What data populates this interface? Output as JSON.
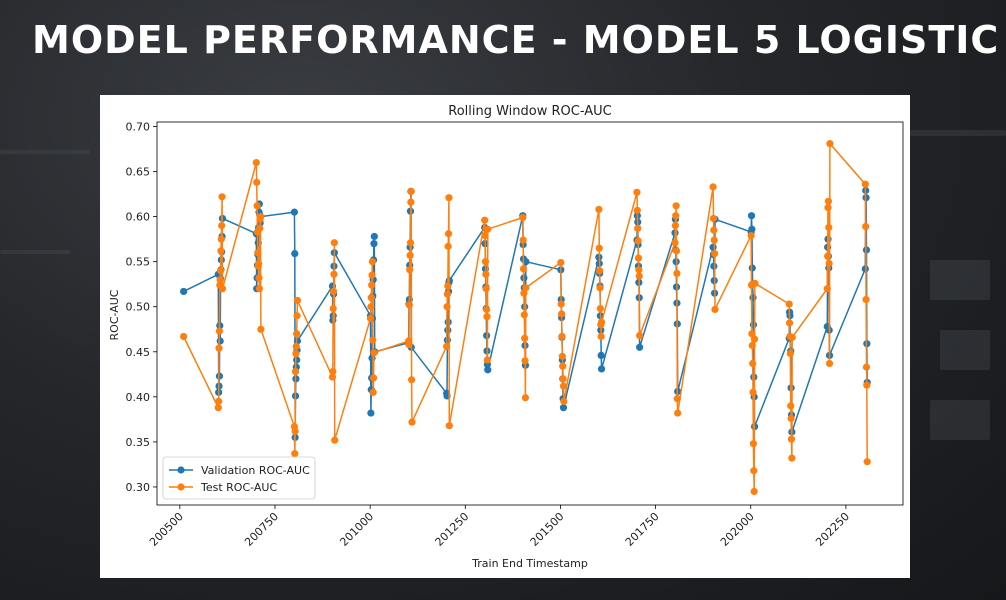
{
  "slide": {
    "title": "MODEL PERFORMANCE - MODEL 5 LOGISTIC"
  },
  "chart_data": {
    "type": "line",
    "title": "Rolling Window ROC-AUC",
    "xlabel": "Train End Timestamp",
    "ylabel": "ROC-AUC",
    "xlim": [
      200440,
      202400
    ],
    "ylim": [
      0.28,
      0.705
    ],
    "xticks": [
      200500,
      200750,
      201000,
      201250,
      201500,
      201750,
      202000,
      202250
    ],
    "yticks": [
      0.3,
      0.35,
      0.4,
      0.45,
      0.5,
      0.55,
      0.6,
      0.65,
      0.7
    ],
    "grid": false,
    "legend_position": "lower-left",
    "series": [
      {
        "name": "Validation ROC-AUC",
        "color": "#1f77b4",
        "x": [
          200510,
          200601,
          200602,
          200603,
          200604,
          200605,
          200606,
          200607,
          200608,
          200609,
          200610,
          200611,
          200612,
          200701,
          200702,
          200703,
          200704,
          200705,
          200706,
          200707,
          200708,
          200709,
          200710,
          200711,
          200712,
          200801,
          200802,
          200803,
          200804,
          200805,
          200806,
          200807,
          200808,
          200809,
          200901,
          200902,
          200903,
          200904,
          200905,
          200906,
          201001,
          201002,
          201003,
          201004,
          201005,
          201006,
          201007,
          201008,
          201009,
          201010,
          201011,
          201012,
          201101,
          201102,
          201103,
          201104,
          201105,
          201106,
          201107,
          201108,
          201201,
          201202,
          201203,
          201204,
          201205,
          201206,
          201207,
          201208,
          201301,
          201302,
          201303,
          201304,
          201305,
          201306,
          201307,
          201308,
          201309,
          201401,
          201402,
          201403,
          201404,
          201405,
          201406,
          201407,
          201408,
          201409,
          201501,
          201502,
          201503,
          201504,
          201505,
          201506,
          201507,
          201508,
          201601,
          201602,
          201603,
          201604,
          201605,
          201606,
          201607,
          201608,
          201701,
          201702,
          201703,
          201704,
          201705,
          201706,
          201707,
          201708,
          201801,
          201802,
          201803,
          201804,
          201805,
          201806,
          201807,
          201808,
          201901,
          201902,
          201903,
          201904,
          201905,
          201906,
          202001,
          202002,
          202003,
          202004,
          202005,
          202006,
          202007,
          202008,
          202009,
          202010,
          202101,
          202102,
          202103,
          202104,
          202105,
          202106,
          202107,
          202108,
          202201,
          202202,
          202203,
          202204,
          202205,
          202206,
          202207,
          202301,
          202302,
          202303,
          202304,
          202305,
          202306
        ],
        "y": [
          0.517,
          0.536,
          0.405,
          0.412,
          0.423,
          0.479,
          0.462,
          0.531,
          0.541,
          0.552,
          0.561,
          0.578,
          0.598,
          0.581,
          0.52,
          0.532,
          0.546,
          0.558,
          0.571,
          0.588,
          0.605,
          0.614,
          0.602,
          0.593,
          0.6,
          0.605,
          0.559,
          0.355,
          0.401,
          0.42,
          0.433,
          0.441,
          0.452,
          0.462,
          0.523,
          0.485,
          0.49,
          0.514,
          0.545,
          0.56,
          0.49,
          0.382,
          0.408,
          0.421,
          0.443,
          0.487,
          0.512,
          0.53,
          0.552,
          0.57,
          0.578,
          0.45,
          0.46,
          0.503,
          0.508,
          0.546,
          0.566,
          0.606,
          0.628,
          0.455,
          0.404,
          0.401,
          0.463,
          0.474,
          0.483,
          0.517,
          0.527,
          0.529,
          0.588,
          0.57,
          0.542,
          0.522,
          0.498,
          0.468,
          0.451,
          0.436,
          0.43,
          0.601,
          0.569,
          0.553,
          0.532,
          0.521,
          0.5,
          0.457,
          0.435,
          0.55,
          0.541,
          0.508,
          0.488,
          0.466,
          0.441,
          0.42,
          0.398,
          0.388,
          0.555,
          0.548,
          0.537,
          0.523,
          0.49,
          0.474,
          0.446,
          0.431,
          0.574,
          0.601,
          0.594,
          0.569,
          0.545,
          0.527,
          0.51,
          0.455,
          0.582,
          0.597,
          0.563,
          0.55,
          0.522,
          0.504,
          0.481,
          0.406,
          0.566,
          0.558,
          0.545,
          0.529,
          0.515,
          0.597,
          0.583,
          0.601,
          0.586,
          0.543,
          0.525,
          0.51,
          0.48,
          0.422,
          0.4,
          0.367,
          0.465,
          0.494,
          0.49,
          0.465,
          0.451,
          0.41,
          0.38,
          0.361,
          0.478,
          0.566,
          0.575,
          0.556,
          0.543,
          0.474,
          0.446,
          0.542,
          0.629,
          0.621,
          0.563,
          0.459,
          0.416
        ]
      },
      {
        "name": "Test ROC-AUC",
        "color": "#ff7f0e",
        "x": [
          200510,
          200601,
          200602,
          200603,
          200604,
          200605,
          200606,
          200607,
          200608,
          200609,
          200610,
          200611,
          200612,
          200701,
          200702,
          200703,
          200704,
          200705,
          200706,
          200707,
          200708,
          200709,
          200710,
          200711,
          200712,
          200713,
          200801,
          200802,
          200803,
          200804,
          200805,
          200806,
          200807,
          200808,
          200809,
          200901,
          200902,
          200903,
          200904,
          200905,
          200906,
          200907,
          201001,
          201002,
          201003,
          201004,
          201005,
          201006,
          201007,
          201008,
          201009,
          201010,
          201101,
          201102,
          201103,
          201104,
          201105,
          201106,
          201107,
          201108,
          201109,
          201110,
          201201,
          201202,
          201203,
          201204,
          201205,
          201206,
          201207,
          201208,
          201301,
          201302,
          201303,
          201304,
          201305,
          201306,
          201307,
          201308,
          201309,
          201401,
          201402,
          201403,
          201404,
          201405,
          201406,
          201407,
          201408,
          201409,
          201501,
          201502,
          201503,
          201504,
          201505,
          201506,
          201507,
          201508,
          201509,
          201601,
          201602,
          201603,
          201604,
          201605,
          201606,
          201607,
          201608,
          201701,
          201702,
          201703,
          201704,
          201705,
          201706,
          201707,
          201708,
          201801,
          201802,
          201803,
          201804,
          201805,
          201806,
          201807,
          201808,
          201901,
          201902,
          201903,
          201904,
          201905,
          201906,
          202001,
          202002,
          202003,
          202004,
          202005,
          202006,
          202007,
          202008,
          202009,
          202010,
          202011,
          202101,
          202102,
          202103,
          202104,
          202105,
          202106,
          202107,
          202108,
          202109,
          202201,
          202202,
          202203,
          202204,
          202205,
          202206,
          202207,
          202208,
          202301,
          202302,
          202303,
          202304,
          202305,
          202306
        ],
        "y": [
          0.467,
          0.388,
          0.395,
          0.454,
          0.473,
          0.524,
          0.53,
          0.54,
          0.562,
          0.575,
          0.59,
          0.622,
          0.52,
          0.66,
          0.638,
          0.612,
          0.583,
          0.56,
          0.545,
          0.548,
          0.532,
          0.52,
          0.587,
          0.597,
          0.6,
          0.475,
          0.367,
          0.337,
          0.362,
          0.428,
          0.448,
          0.456,
          0.47,
          0.49,
          0.507,
          0.422,
          0.428,
          0.498,
          0.517,
          0.536,
          0.571,
          0.352,
          0.487,
          0.5,
          0.51,
          0.524,
          0.535,
          0.55,
          0.463,
          0.405,
          0.421,
          0.449,
          0.462,
          0.458,
          0.502,
          0.541,
          0.557,
          0.571,
          0.616,
          0.628,
          0.419,
          0.372,
          0.456,
          0.5,
          0.514,
          0.523,
          0.567,
          0.581,
          0.621,
          0.368,
          0.596,
          0.579,
          0.55,
          0.536,
          0.52,
          0.497,
          0.489,
          0.441,
          0.586,
          0.599,
          0.574,
          0.542,
          0.515,
          0.491,
          0.465,
          0.44,
          0.399,
          0.521,
          0.549,
          0.503,
          0.492,
          0.467,
          0.445,
          0.434,
          0.42,
          0.412,
          0.395,
          0.608,
          0.565,
          0.54,
          0.521,
          0.498,
          0.48,
          0.467,
          0.483,
          0.627,
          0.607,
          0.587,
          0.573,
          0.554,
          0.541,
          0.534,
          0.468,
          0.571,
          0.59,
          0.601,
          0.612,
          0.562,
          0.537,
          0.398,
          0.382,
          0.633,
          0.598,
          0.585,
          0.574,
          0.559,
          0.497,
          0.579,
          0.524,
          0.47,
          0.457,
          0.437,
          0.405,
          0.348,
          0.318,
          0.295,
          0.464,
          0.526,
          0.503,
          0.482,
          0.467,
          0.448,
          0.39,
          0.376,
          0.353,
          0.332,
          0.466,
          0.52,
          0.556,
          0.61,
          0.617,
          0.588,
          0.548,
          0.437,
          0.681,
          0.636,
          0.589,
          0.508,
          0.433,
          0.413,
          0.328
        ]
      }
    ]
  }
}
